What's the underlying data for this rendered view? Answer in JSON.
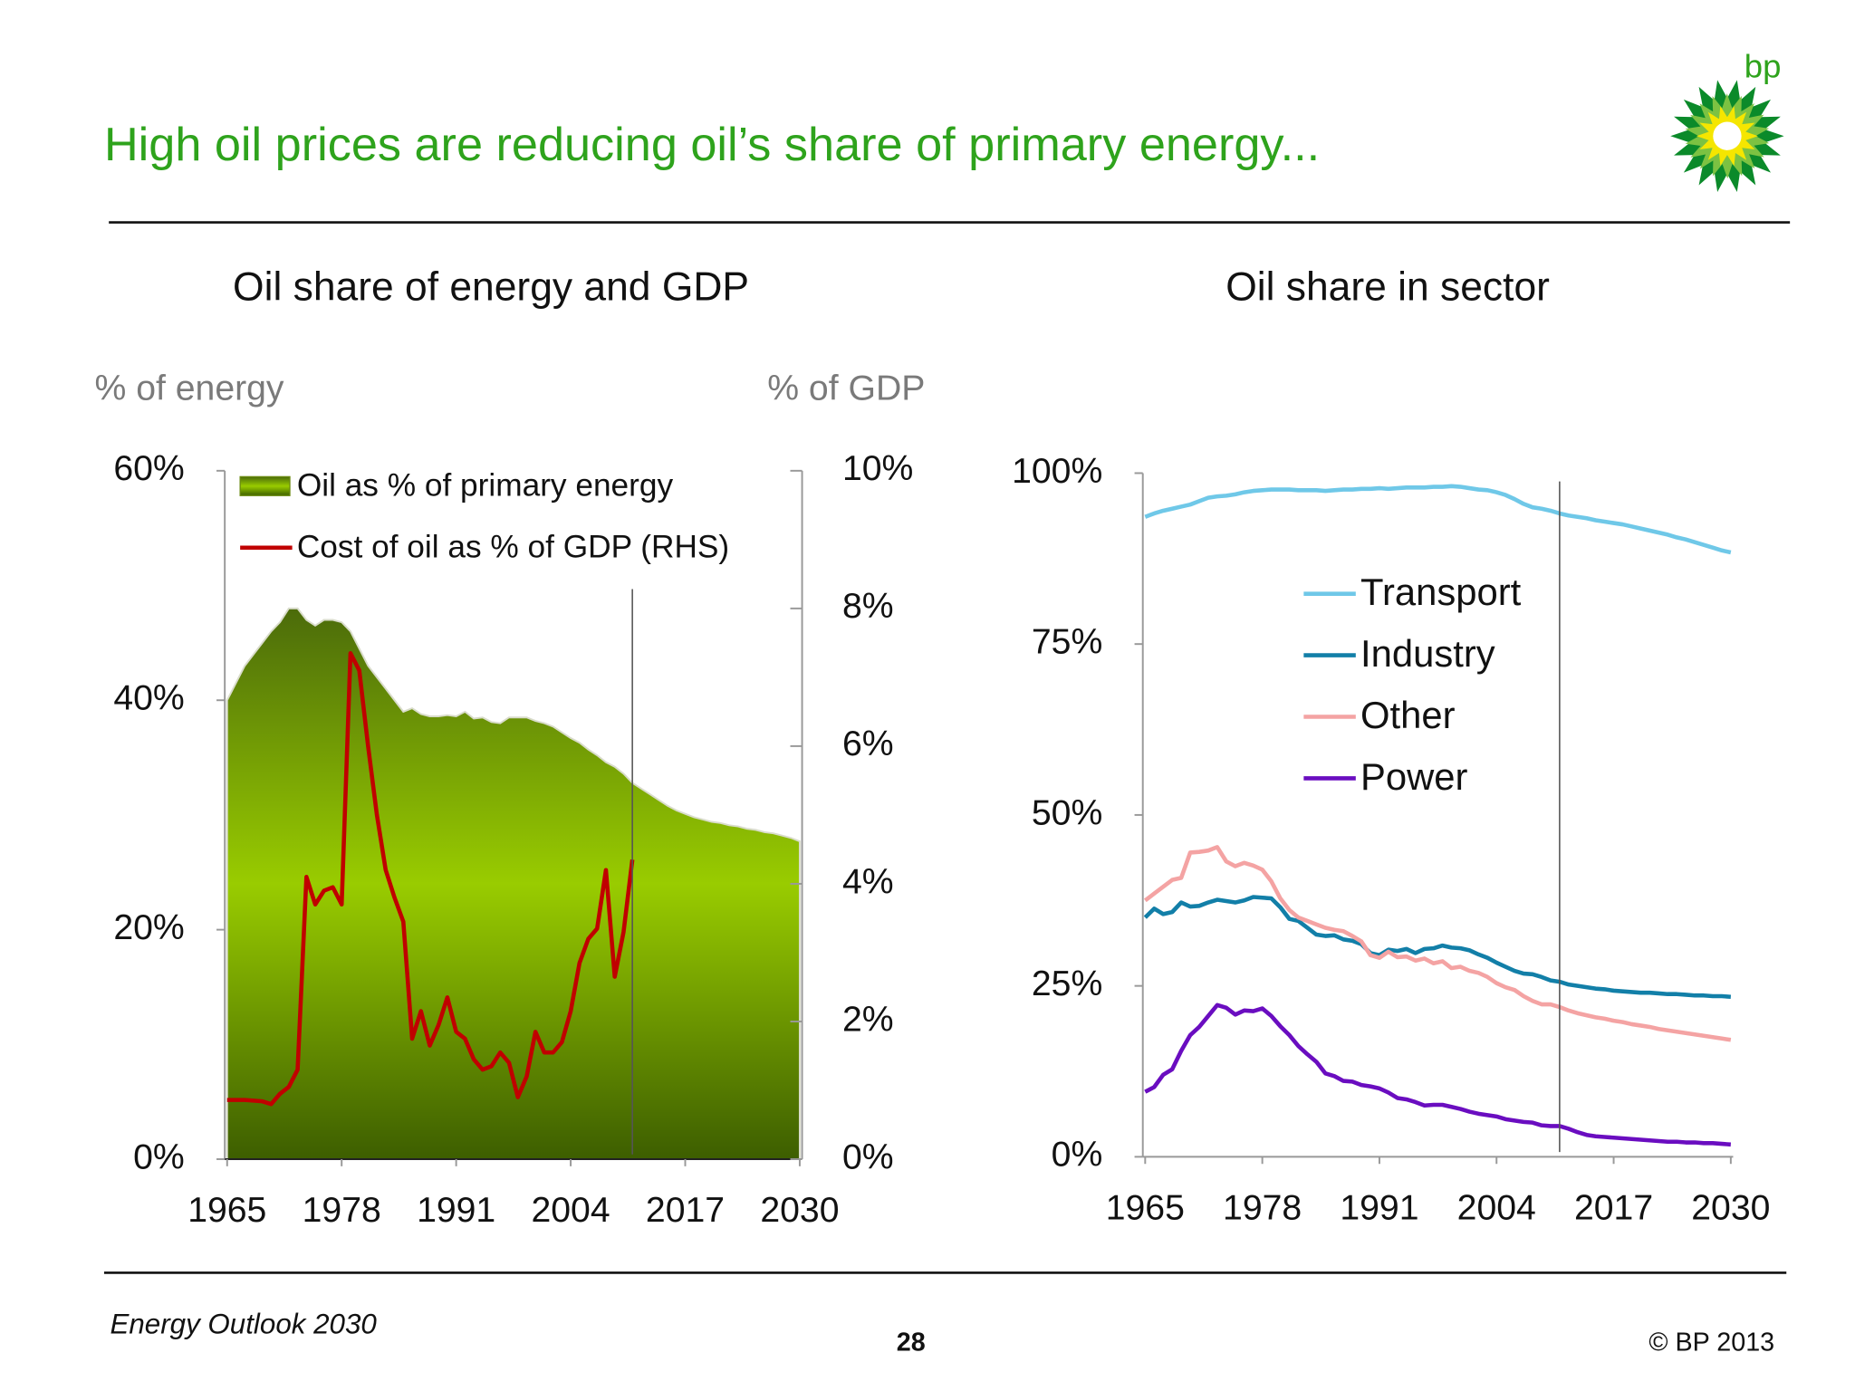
{
  "title": "High oil prices are reducing oil’s share of primary energy...",
  "logo_text": "bp",
  "chart_data": [
    {
      "type": "area",
      "title": "Oil share of energy and GDP",
      "ylabel": "% of energy",
      "y2label": "% of GDP",
      "x": [
        1965,
        1966,
        1967,
        1968,
        1969,
        1970,
        1971,
        1972,
        1973,
        1974,
        1975,
        1976,
        1977,
        1978,
        1979,
        1980,
        1981,
        1982,
        1983,
        1984,
        1985,
        1986,
        1987,
        1988,
        1989,
        1990,
        1991,
        1992,
        1993,
        1994,
        1995,
        1996,
        1997,
        1998,
        1999,
        2000,
        2001,
        2002,
        2003,
        2004,
        2005,
        2006,
        2007,
        2008,
        2009,
        2010,
        2011,
        2012,
        2013,
        2014,
        2015,
        2016,
        2017,
        2018,
        2019,
        2020,
        2021,
        2022,
        2023,
        2024,
        2025,
        2026,
        2027,
        2028,
        2029,
        2030
      ],
      "xlim": [
        1965,
        2030
      ],
      "xticks": [
        1965,
        1978,
        1991,
        2004,
        2017,
        2030
      ],
      "ylim": [
        0,
        60
      ],
      "yticks": [
        {
          "value": 0,
          "label": "0%"
        },
        {
          "value": 20,
          "label": "20%"
        },
        {
          "value": 40,
          "label": "40%"
        },
        {
          "value": 60,
          "label": "60%"
        }
      ],
      "y2lim": [
        0,
        10
      ],
      "y2ticks": [
        {
          "value": 0,
          "label": "0%"
        },
        {
          "value": 2,
          "label": "2%"
        },
        {
          "value": 4,
          "label": "4%"
        },
        {
          "value": 6,
          "label": "6%"
        },
        {
          "value": 8,
          "label": "8%"
        },
        {
          "value": 10,
          "label": "10%"
        }
      ],
      "vline": 2011,
      "legend": "upper left",
      "series": [
        {
          "name": "Oil as % of primary energy",
          "type": "area",
          "color": "#99cc00",
          "values": [
            40,
            41.5,
            43,
            44,
            45,
            46,
            46.8,
            48,
            48,
            47,
            46.5,
            47,
            47,
            46.8,
            46,
            44.5,
            43,
            42,
            41,
            40,
            39,
            39.3,
            38.8,
            38.6,
            38.6,
            38.7,
            38.6,
            39,
            38.4,
            38.5,
            38.1,
            38,
            38.5,
            38.5,
            38.5,
            38.2,
            38,
            37.7,
            37.2,
            36.7,
            36.3,
            35.7,
            35.2,
            34.6,
            34.2,
            33.6,
            32.8,
            32.3,
            31.8,
            31.3,
            30.8,
            30.4,
            30.1,
            29.8,
            29.6,
            29.4,
            29.3,
            29.1,
            29.0,
            28.8,
            28.7,
            28.5,
            28.4,
            28.2,
            28.0,
            27.7
          ]
        },
        {
          "name": "Cost of oil as % of GDP (RHS)",
          "type": "line",
          "axis": "y2",
          "color": "#c00000",
          "values": [
            0.86,
            0.86,
            0.86,
            0.85,
            0.84,
            0.8,
            0.95,
            1.05,
            1.3,
            4.1,
            3.7,
            3.9,
            3.95,
            3.7,
            7.35,
            7.1,
            6.0,
            5.0,
            4.2,
            3.8,
            3.45,
            1.75,
            2.15,
            1.65,
            1.95,
            2.35,
            1.85,
            1.75,
            1.45,
            1.3,
            1.35,
            1.55,
            1.4,
            0.9,
            1.2,
            1.85,
            1.55,
            1.55,
            1.7,
            2.15,
            2.85,
            3.2,
            3.35,
            4.2,
            2.65,
            3.3,
            4.35,
            null,
            null,
            null,
            null,
            null,
            null,
            null,
            null,
            null,
            null,
            null,
            null,
            null,
            null,
            null,
            null,
            null,
            null,
            null
          ]
        }
      ]
    },
    {
      "type": "line",
      "title": "Oil share in sector",
      "x": [
        1965,
        1966,
        1967,
        1968,
        1969,
        1970,
        1971,
        1972,
        1973,
        1974,
        1975,
        1976,
        1977,
        1978,
        1979,
        1980,
        1981,
        1982,
        1983,
        1984,
        1985,
        1986,
        1987,
        1988,
        1989,
        1990,
        1991,
        1992,
        1993,
        1994,
        1995,
        1996,
        1997,
        1998,
        1999,
        2000,
        2001,
        2002,
        2003,
        2004,
        2005,
        2006,
        2007,
        2008,
        2009,
        2010,
        2011,
        2012,
        2013,
        2014,
        2015,
        2016,
        2017,
        2018,
        2019,
        2020,
        2021,
        2022,
        2023,
        2024,
        2025,
        2026,
        2027,
        2028,
        2029,
        2030
      ],
      "xlim": [
        1965,
        2030
      ],
      "xticks": [
        1965,
        1978,
        1991,
        2004,
        2017,
        2030
      ],
      "ylim": [
        0,
        100
      ],
      "yticks": [
        {
          "value": 0,
          "label": "0%"
        },
        {
          "value": 25,
          "label": "25%"
        },
        {
          "value": 50,
          "label": "50%"
        },
        {
          "value": 75,
          "label": "75%"
        },
        {
          "value": 100,
          "label": "100%"
        }
      ],
      "vline": 2011,
      "legend": "center",
      "series": [
        {
          "name": "Transport",
          "color": "#6fc8e8",
          "values": [
            93.6,
            94.1,
            94.5,
            94.8,
            95.1,
            95.4,
            95.9,
            96.4,
            96.6,
            96.7,
            96.9,
            97.2,
            97.4,
            97.5,
            97.6,
            97.6,
            97.6,
            97.5,
            97.5,
            97.5,
            97.4,
            97.5,
            97.6,
            97.6,
            97.7,
            97.7,
            97.8,
            97.7,
            97.8,
            97.9,
            97.9,
            97.9,
            98,
            98,
            98.1,
            98,
            97.8,
            97.6,
            97.5,
            97.2,
            96.8,
            96.2,
            95.5,
            95,
            94.8,
            94.5,
            94.1,
            93.8,
            93.6,
            93.4,
            93.1,
            92.9,
            92.7,
            92.5,
            92.2,
            91.9,
            91.6,
            91.3,
            91.0,
            90.6,
            90.3,
            89.9,
            89.5,
            89.1,
            88.7,
            88.4
          ]
        },
        {
          "name": "Industry",
          "color": "#127fa8",
          "values": [
            35,
            36.3,
            35.5,
            35.8,
            37.2,
            36.6,
            36.7,
            37.2,
            37.6,
            37.4,
            37.2,
            37.5,
            38,
            37.9,
            37.8,
            36.5,
            34.8,
            34.5,
            33.5,
            32.5,
            32.3,
            32.4,
            31.8,
            31.6,
            31.1,
            29.8,
            29.5,
            30.3,
            30.1,
            30.4,
            29.8,
            30.4,
            30.5,
            30.9,
            30.6,
            30.5,
            30.2,
            29.6,
            29.1,
            28.4,
            27.8,
            27.2,
            26.8,
            26.7,
            26.3,
            25.8,
            25.6,
            25.2,
            25.0,
            24.8,
            24.6,
            24.5,
            24.3,
            24.2,
            24.1,
            24.0,
            24.0,
            23.9,
            23.8,
            23.8,
            23.7,
            23.6,
            23.6,
            23.5,
            23.5,
            23.4
          ]
        },
        {
          "name": "Other",
          "color": "#f4a3a3",
          "values": [
            37.5,
            38.5,
            39.5,
            40.5,
            40.8,
            44.5,
            44.6,
            44.8,
            45.3,
            43.2,
            42.5,
            43,
            42.6,
            42,
            40.3,
            37.8,
            36.1,
            35,
            34.5,
            34,
            33.5,
            33.2,
            33,
            32.3,
            31.5,
            29.5,
            29.1,
            30,
            29.2,
            29.3,
            28.7,
            29,
            28.3,
            28.6,
            27.6,
            27.8,
            27.2,
            26.9,
            26.3,
            25.4,
            24.8,
            24.4,
            23.5,
            22.8,
            22.3,
            22.3,
            21.9,
            21.4,
            21.0,
            20.7,
            20.4,
            20.2,
            19.9,
            19.7,
            19.4,
            19.2,
            19.0,
            18.7,
            18.5,
            18.3,
            18.1,
            17.9,
            17.7,
            17.5,
            17.3,
            17.1
          ]
        },
        {
          "name": "Power",
          "color": "#6a0dc0",
          "values": [
            9.5,
            10.2,
            12,
            12.8,
            15.5,
            17.8,
            19,
            20.6,
            22.2,
            21.8,
            20.8,
            21.4,
            21.3,
            21.7,
            20.6,
            19.1,
            17.8,
            16.2,
            15,
            13.9,
            12.2,
            11.8,
            11.1,
            11,
            10.5,
            10.3,
            10,
            9.4,
            8.6,
            8.4,
            8,
            7.5,
            7.6,
            7.6,
            7.3,
            7,
            6.6,
            6.3,
            6.1,
            5.9,
            5.5,
            5.3,
            5.1,
            5,
            4.6,
            4.5,
            4.5,
            4.1,
            3.6,
            3.2,
            3.0,
            2.9,
            2.8,
            2.7,
            2.6,
            2.5,
            2.4,
            2.3,
            2.2,
            2.2,
            2.1,
            2.1,
            2.0,
            2.0,
            1.9,
            1.8
          ]
        }
      ]
    }
  ],
  "footer": {
    "source": "Energy Outlook 2030",
    "page": "28",
    "copyright": "© BP 2013"
  }
}
